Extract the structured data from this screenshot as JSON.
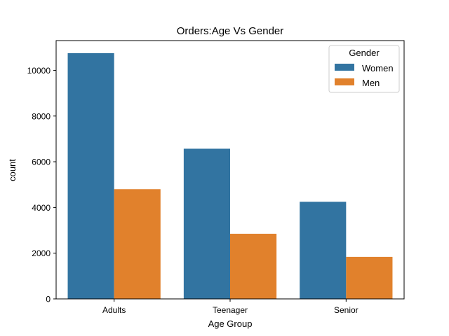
{
  "chart_data": {
    "type": "bar",
    "title": "Orders:Age Vs Gender",
    "xlabel": "Age Group",
    "ylabel": "count",
    "categories": [
      "Adults",
      "Teenager",
      "Senior"
    ],
    "series": [
      {
        "name": "Women",
        "color": "#3274a1",
        "values": [
          10750,
          6570,
          4250
        ]
      },
      {
        "name": "Men",
        "color": "#e1812c",
        "values": [
          4800,
          2850,
          1840
        ]
      }
    ],
    "ylim": [
      0,
      11300
    ],
    "yticks": [
      0,
      2000,
      4000,
      6000,
      8000,
      10000
    ],
    "legend": {
      "title": "Gender",
      "placement": "top-right"
    },
    "grid": false
  }
}
